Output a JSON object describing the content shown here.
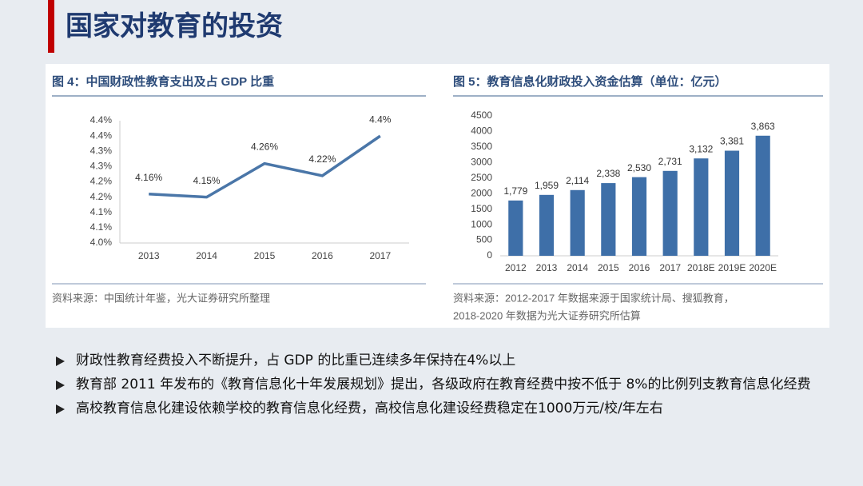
{
  "title": "国家对教育的投资",
  "chart_data": [
    {
      "type": "line",
      "title": "图 4：中国财政性教育支出及占 GDP 比重",
      "categories": [
        "2013",
        "2014",
        "2015",
        "2016",
        "2017"
      ],
      "values": [
        4.16,
        4.15,
        4.26,
        4.22,
        4.35
      ],
      "value_labels": [
        "4.16%",
        "4.15%",
        "4.26%",
        "4.22%",
        "4.4%"
      ],
      "color": "#4a76a8",
      "ylim": [
        4.0,
        4.4
      ],
      "yticks": [
        {
          "value": 4.0,
          "label": "4.0%"
        },
        {
          "value": 4.05,
          "label": "4.1%"
        },
        {
          "value": 4.1,
          "label": "4.1%"
        },
        {
          "value": 4.15,
          "label": "4.2%"
        },
        {
          "value": 4.2,
          "label": "4.2%"
        },
        {
          "value": 4.25,
          "label": "4.3%"
        },
        {
          "value": 4.3,
          "label": "4.3%"
        },
        {
          "value": 4.35,
          "label": "4.4%"
        },
        {
          "value": 4.4,
          "label": "4.4%"
        }
      ],
      "grid": false,
      "source": "资料来源：中国统计年鉴，光大证券研究所整理"
    },
    {
      "type": "bar",
      "title": "图 5：教育信息化财政投入资金估算（单位：亿元）",
      "categories": [
        "2012",
        "2013",
        "2014",
        "2015",
        "2016",
        "2017",
        "2018E",
        "2019E",
        "2020E"
      ],
      "values": [
        1779,
        1959,
        2114,
        2338,
        2530,
        2731,
        3132,
        3381,
        3863
      ],
      "value_labels": [
        "1,779",
        "1,959",
        "2,114",
        "2,338",
        "2,530",
        "2,731",
        "3,132",
        "3,381",
        "3,863"
      ],
      "color": "#3e6fa8",
      "ylim": [
        0,
        4500
      ],
      "yticks": [
        0,
        500,
        1000,
        1500,
        2000,
        2500,
        3000,
        3500,
        4000,
        4500
      ],
      "grid": false,
      "source": [
        "资料来源：2012-2017 年数据来源于国家统计局、搜狐教育，",
        "2018-2020 年数据为光大证券研究所估算"
      ]
    }
  ],
  "bullets": [
    "财政性教育经费投入不断提升，占 GDP 的比重已连续多年保持在4%以上",
    "教育部 2011 年发布的《教育信息化十年发展规划》提出，各级政府在教育经费中按不低于 8%的比例列支教育信息化经费",
    "高校教育信息化建设依赖学校的教育信息化经费，高校信息化建设经费稳定在1000万元/校/年左右"
  ]
}
